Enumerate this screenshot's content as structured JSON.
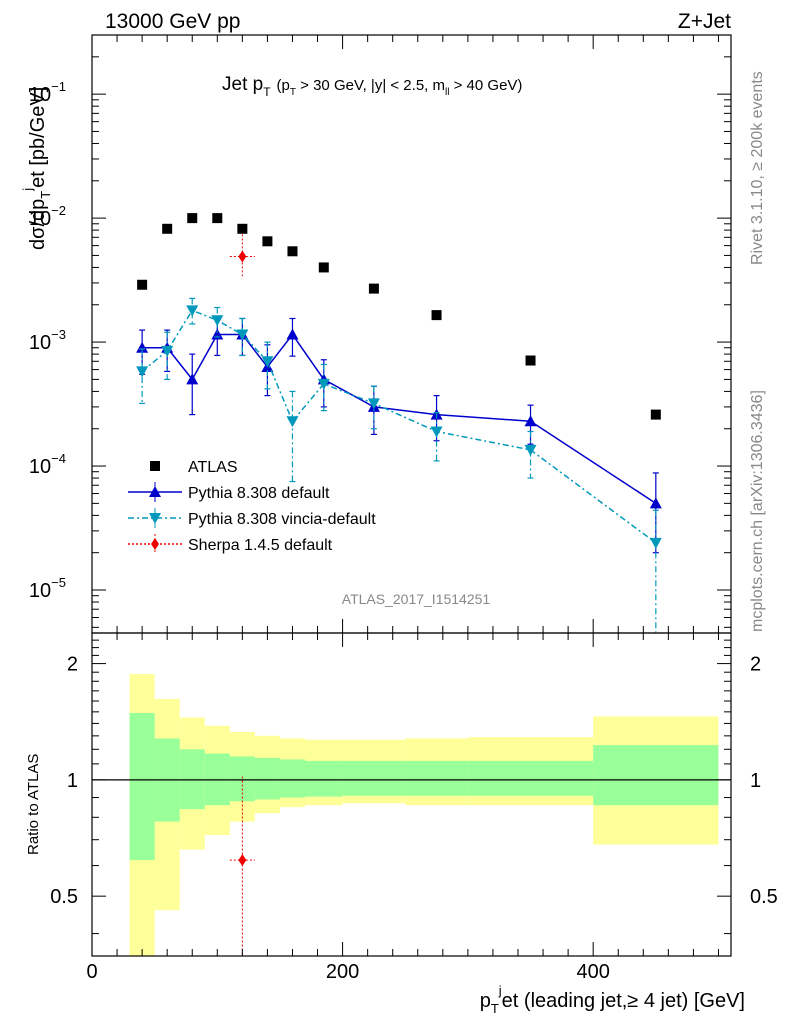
{
  "header": {
    "left": "13000 GeV pp",
    "right": "Z+Jet"
  },
  "plot_title": {
    "main_jet": "Jet p",
    "main_sub": "T",
    "cond_open": "(p",
    "cond_sub": "T",
    "cond_mid": " > 30 GeV, |y| < 2.5, m",
    "cond_sub2": "ll",
    "cond_end": " > 40 GeV)"
  },
  "side_labels": {
    "top": "Rivet 3.1.10, ≥ 200k events",
    "bottom": "mcplots.cern.ch [arXiv:1306.3436]"
  },
  "analysis_id": "ATLAS_2017_I1514251",
  "y_axis_main": {
    "label_a": "dσ/dp",
    "label_sub": "T",
    "label_sup": "j",
    "label_b": "et [pb/GeV]",
    "ticks": [
      {
        "base": "10",
        "exp": "−1",
        "value": 0.1
      },
      {
        "base": "10",
        "exp": "−2",
        "value": 0.01
      },
      {
        "base": "10",
        "exp": "−3",
        "value": 0.001
      },
      {
        "base": "10",
        "exp": "−4",
        "value": 0.0001
      },
      {
        "base": "10",
        "exp": "−5",
        "value": 1e-05
      }
    ]
  },
  "y_axis_ratio": {
    "label": "Ratio to ATLAS",
    "ticks": [
      "2",
      "1",
      "0.5"
    ]
  },
  "x_axis": {
    "label_a": "p",
    "label_sub": "T",
    "label_sup": "j",
    "label_b": "et (leading jet,≥ 4 jet) [GeV]",
    "ticks": [
      "0",
      "200",
      "400"
    ]
  },
  "legend": [
    {
      "name": "ATLAS",
      "color": "#000000",
      "marker": "square"
    },
    {
      "name": "Pythia 8.308 default",
      "color": "#0000cc",
      "marker": "triangle-up"
    },
    {
      "name": "Pythia 8.308 vincia-default",
      "color": "#0099bb",
      "marker": "triangle-down"
    },
    {
      "name": "Sherpa 1.4.5 default",
      "color": "#ee0000",
      "marker": "diamond"
    }
  ],
  "chart_data": [
    {
      "type": "scatter",
      "title": "Jet pT (pT > 30 GeV, |y| < 2.5, mll > 40 GeV)",
      "xlabel": "pTjet (leading jet,≥ 4 jet) [GeV]",
      "ylabel": "dσ/dpTjet [pb/GeV]",
      "xlim": [
        0,
        510
      ],
      "ylim": [
        4.5e-06,
        0.3
      ],
      "yscale": "log",
      "bin_edges": [
        30,
        50,
        70,
        90,
        110,
        130,
        150,
        170,
        200,
        250,
        300,
        400,
        500
      ],
      "series": [
        {
          "name": "ATLAS",
          "x": [
            40,
            60,
            80,
            100,
            120,
            140,
            160,
            185,
            225,
            275,
            350,
            450
          ],
          "y": [
            0.0029,
            0.0082,
            0.01,
            0.01,
            0.0082,
            0.0065,
            0.0054,
            0.004,
            0.0027,
            0.00165,
            0.00071,
            0.00026
          ]
        },
        {
          "name": "Pythia 8.308 default",
          "x": [
            40,
            60,
            80,
            100,
            120,
            140,
            160,
            185,
            225,
            275,
            350,
            450
          ],
          "y": [
            0.0009,
            0.0009,
            0.0005,
            0.00115,
            0.00115,
            0.00063,
            0.00115,
            0.0005,
            0.0003,
            0.00026,
            0.00023,
            5e-05
          ],
          "yerr_low": [
            0.00055,
            0.00058,
            0.00026,
            0.00078,
            0.00078,
            0.00037,
            0.00077,
            0.0003,
            0.00018,
            0.00016,
            0.00015,
            2e-05
          ],
          "yerr_high": [
            0.00125,
            0.00125,
            0.0008,
            0.00155,
            0.00155,
            0.00095,
            0.00155,
            0.00072,
            0.00044,
            0.00037,
            0.00031,
            8.8e-05
          ]
        },
        {
          "name": "Pythia 8.308 vincia-default",
          "x": [
            40,
            60,
            80,
            100,
            120,
            140,
            160,
            185,
            225,
            275,
            350,
            450
          ],
          "y": [
            0.00058,
            0.00085,
            0.0018,
            0.0015,
            0.00115,
            0.0007,
            0.00023,
            0.00046,
            0.00032,
            0.00019,
            0.000135,
            2.4e-05
          ],
          "yerr_low": [
            0.00032,
            0.0005,
            0.0014,
            0.0011,
            0.00078,
            0.00042,
            7.5e-05,
            0.00028,
            0.0002,
            0.00011,
            8e-05,
            4.5e-06
          ],
          "yerr_high": [
            0.00088,
            0.0012,
            0.00225,
            0.0019,
            0.00155,
            0.001,
            0.0004,
            0.00066,
            0.00044,
            0.00027,
            0.00019,
            4.4e-05
          ]
        },
        {
          "name": "Sherpa 1.4.5 default",
          "x": [
            120
          ],
          "y": [
            0.0049
          ],
          "xerr": [
            10
          ],
          "yerr_low": [
            0.0034
          ],
          "yerr_high": [
            0.0074
          ]
        }
      ]
    },
    {
      "type": "area",
      "title": "",
      "ylabel": "Ratio to ATLAS",
      "xlabel": "pTjet (leading jet,≥ 4 jet) [GeV]",
      "xlim": [
        0,
        510
      ],
      "ylim": [
        0.35,
        2.4
      ],
      "yscale": "log",
      "bin_edges": [
        30,
        50,
        70,
        90,
        110,
        130,
        150,
        170,
        200,
        250,
        300,
        400,
        500
      ],
      "series": [
        {
          "name": "stat band",
          "low": [
            0.62,
            0.78,
            0.84,
            0.86,
            0.88,
            0.89,
            0.9,
            0.905,
            0.91,
            0.91,
            0.91,
            0.86
          ],
          "high": [
            1.49,
            1.28,
            1.2,
            1.17,
            1.15,
            1.14,
            1.13,
            1.12,
            1.12,
            1.12,
            1.12,
            1.23
          ]
        },
        {
          "name": "total band",
          "low": [
            0.3,
            0.46,
            0.66,
            0.72,
            0.78,
            0.82,
            0.85,
            0.86,
            0.87,
            0.86,
            0.86,
            0.68
          ],
          "high": [
            1.88,
            1.62,
            1.45,
            1.38,
            1.33,
            1.3,
            1.28,
            1.27,
            1.27,
            1.28,
            1.29,
            1.46
          ]
        },
        {
          "name": "Sherpa 1.4.5 default",
          "x": [
            120
          ],
          "y": [
            0.62
          ],
          "xerr": [
            10
          ],
          "yerr_low": [
            0.2
          ],
          "yerr_high": [
            1.02
          ]
        }
      ]
    }
  ]
}
